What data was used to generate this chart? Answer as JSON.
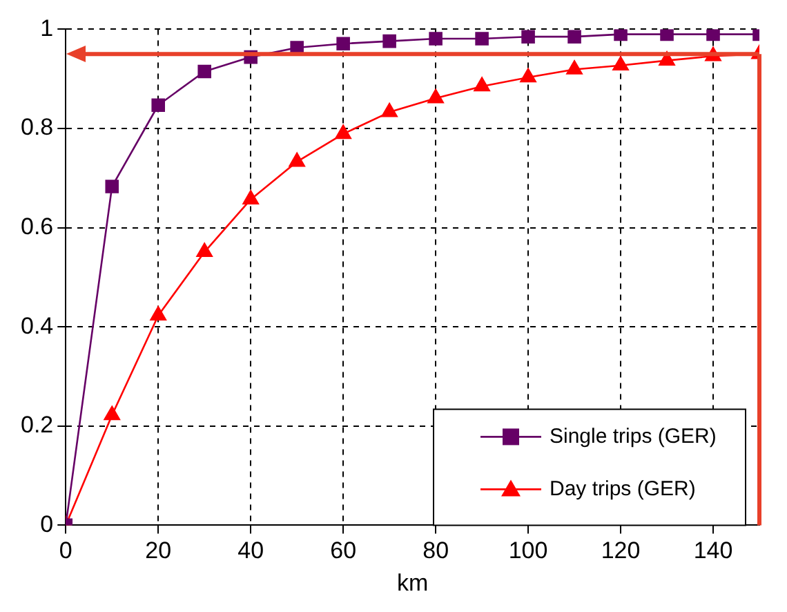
{
  "chart_data": {
    "type": "line",
    "xlabel": "km",
    "x": [
      0,
      10,
      20,
      30,
      40,
      50,
      60,
      70,
      80,
      90,
      100,
      110,
      120,
      130,
      140,
      150
    ],
    "series": [
      {
        "name": "Single trips (GER)",
        "color": "#660066",
        "marker": "square",
        "values": [
          0,
          0.683,
          0.847,
          0.915,
          0.944,
          0.963,
          0.971,
          0.976,
          0.981,
          0.981,
          0.985,
          0.985,
          0.99,
          0.99,
          0.99,
          0.99
        ]
      },
      {
        "name": "Day trips (GER)",
        "color": "#ff0000",
        "marker": "triangle",
        "values": [
          0,
          0.222,
          0.423,
          0.551,
          0.657,
          0.733,
          0.789,
          0.833,
          0.861,
          0.885,
          0.903,
          0.919,
          0.927,
          0.937,
          0.946,
          0.95
        ]
      }
    ],
    "xlim": [
      0,
      150
    ],
    "xticks": [
      0,
      20,
      40,
      60,
      80,
      100,
      120,
      140
    ],
    "ylim": [
      0,
      1
    ],
    "yticks": [
      0,
      0.2,
      0.4,
      0.6,
      0.8,
      1
    ],
    "ref_lines": [
      {
        "axis": "y",
        "value": 0.95,
        "color": "#e8402a"
      },
      {
        "axis": "x",
        "value": 150,
        "color": "#e8402a"
      }
    ],
    "grid": true,
    "legend": "bottom right",
    "line_style": "solid"
  }
}
